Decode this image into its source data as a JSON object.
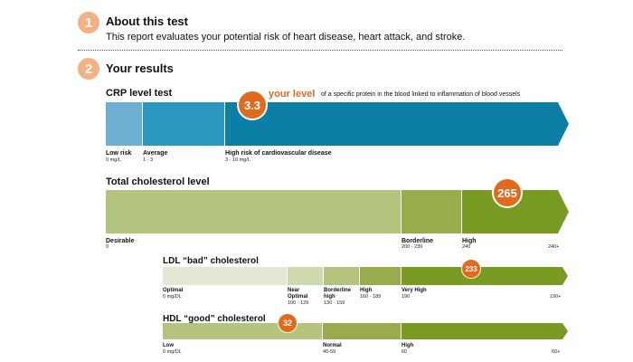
{
  "section1": {
    "number": "1",
    "title": "About this test",
    "text": "This report evaluates your potential risk of heart disease, heart attack, and stroke."
  },
  "section2": {
    "number": "2",
    "title": "Your results"
  },
  "crp": {
    "title": "CRP level test",
    "value": "3.3",
    "your_level_label": "your level",
    "your_level_desc": "of a specific protein in the blood linked to inflammation of blood vessels",
    "segments": [
      {
        "label": "Low risk",
        "sub": "0 mg/L"
      },
      {
        "label": "Average",
        "sub": "1 - 3"
      },
      {
        "label": "High risk of cardiovascular disease",
        "sub": "3 - 10 mg/L"
      }
    ],
    "colors": [
      "#6db0d2",
      "#2a98c0",
      "#0b7fa5"
    ]
  },
  "total": {
    "title": "Total cholesterol level",
    "value": "265",
    "segments": [
      {
        "label": "Desirable",
        "sub": "0"
      },
      {
        "label": "Borderline",
        "sub": "200 - 239"
      },
      {
        "label": "High",
        "sub": "240"
      }
    ],
    "end_sub": "240+",
    "colors": [
      "#b4c47f",
      "#98ab4d",
      "#7a9b22"
    ]
  },
  "ldl": {
    "title": "LDL “bad” cholesterol",
    "value": "233",
    "segments": [
      {
        "label": "Optimal",
        "sub": "0 mg/DL"
      },
      {
        "label": "Near Optimal",
        "sub": "100 - 129"
      },
      {
        "label": "Borderline high",
        "sub": "130 - 159"
      },
      {
        "label": "High",
        "sub": "160 - 189"
      },
      {
        "label": "Very High",
        "sub": "190"
      }
    ],
    "end_sub": "190+",
    "colors": [
      "#e2e8d2",
      "#cfd9ae",
      "#b4c47f",
      "#98ab4d",
      "#7a9b22"
    ]
  },
  "hdl": {
    "title": "HDL “good” cholesterol",
    "value": "32",
    "segments": [
      {
        "label": "Low",
        "sub": "0 mg/DL"
      },
      {
        "label": "Normal",
        "sub": "40-59"
      },
      {
        "label": "High",
        "sub": "60"
      }
    ],
    "end_sub": "60+",
    "colors": [
      "#b4c47f",
      "#98ab4d",
      "#7a9b22"
    ]
  }
}
